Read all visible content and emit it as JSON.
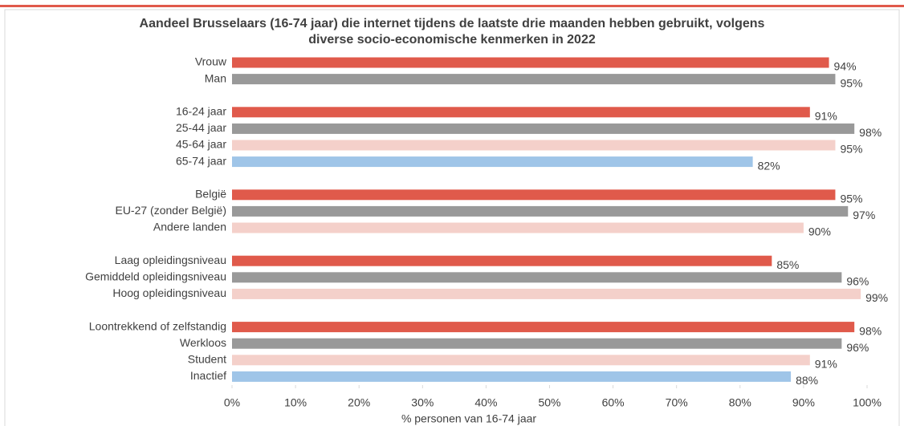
{
  "chart_data": {
    "type": "hbar",
    "title": "Aandeel Brusselaars (16-74 jaar) die internet tijdens de laatste drie maanden hebben gebruikt, volgens diverse socio-economische kenmerken in 2022",
    "x_label": "% personen van 16-74 jaar",
    "categories": [
      "Vrouw",
      "Man",
      null,
      "16-24 jaar",
      "25-44 jaar",
      "45-64 jaar",
      "65-74 jaar",
      null,
      "België",
      "EU-27 (zonder België)",
      "Andere landen",
      null,
      "Laag opleidingsniveau",
      "Gemiddeld opleidingsniveau",
      "Hoog opleidingsniveau",
      null,
      "Loontrekkend of zelfstandig",
      "Werkloos",
      "Student",
      "Inactief"
    ],
    "values": [
      94,
      95,
      null,
      91,
      98,
      95,
      82,
      null,
      95,
      97,
      90,
      null,
      85,
      96,
      99,
      null,
      98,
      96,
      91,
      88
    ],
    "value_labels": [
      "94%",
      "95%",
      null,
      "91%",
      "98%",
      "95%",
      "82%",
      null,
      "95%",
      "97%",
      "90%",
      null,
      "85%",
      "96%",
      "99%",
      null,
      "98%",
      "96%",
      "91%",
      "88%"
    ],
    "colors": [
      "#e05a4b",
      "#999999",
      null,
      "#e05a4b",
      "#999999",
      "#f4d0ca",
      "#9fc5e8",
      null,
      "#e05a4b",
      "#999999",
      "#f4d0ca",
      null,
      "#e05a4b",
      "#999999",
      "#f4d0ca",
      null,
      "#e05a4b",
      "#999999",
      "#f4d0ca",
      "#9fc5e8"
    ],
    "xlim": [
      0,
      100
    ],
    "xticks": [
      {
        "value": 0,
        "label": "0%"
      },
      {
        "value": 10,
        "label": "10%"
      },
      {
        "value": 20,
        "label": "20%"
      },
      {
        "value": 30,
        "label": "30%"
      },
      {
        "value": 40,
        "label": "40%"
      },
      {
        "value": 50,
        "label": "50%"
      },
      {
        "value": 60,
        "label": "60%"
      },
      {
        "value": 70,
        "label": "70%"
      },
      {
        "value": 80,
        "label": "80%"
      },
      {
        "value": 90,
        "label": "90%"
      },
      {
        "value": 100,
        "label": "100%"
      }
    ],
    "grid": false
  }
}
